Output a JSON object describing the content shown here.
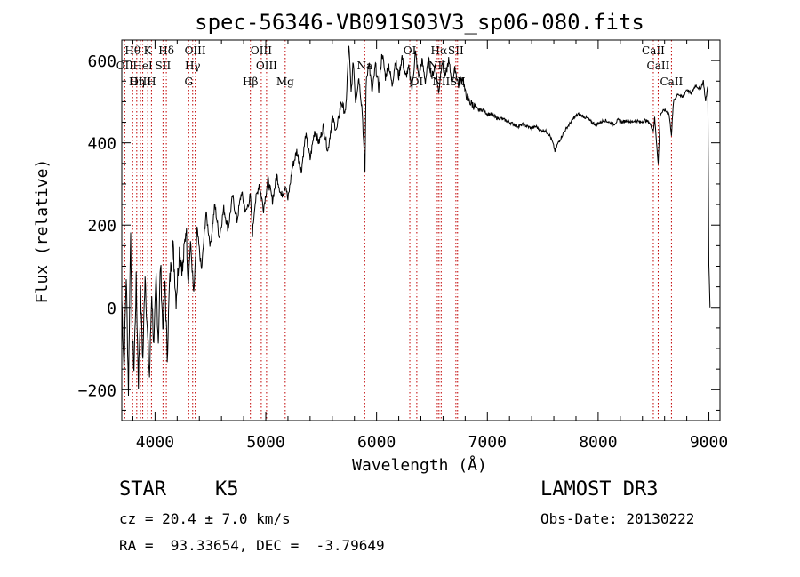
{
  "chart_data": {
    "type": "line",
    "title": "spec-56346-VB091S03V3_sp06-080.fits",
    "xlabel": "Wavelength (Å)",
    "ylabel": "Flux (relative)",
    "xlim": [
      3700,
      9100
    ],
    "ylim": [
      -275,
      650
    ],
    "x_ticks": [
      4000,
      5000,
      6000,
      7000,
      8000,
      9000
    ],
    "y_ticks": [
      -200,
      0,
      200,
      400,
      600
    ],
    "grid": false,
    "colors": {
      "spectrum": "#000000",
      "line_markers": "#c00000"
    },
    "series": [
      {
        "name": "spectrum",
        "points": [
          [
            3700,
            20
          ],
          [
            3720,
            -150
          ],
          [
            3740,
            80
          ],
          [
            3760,
            -200
          ],
          [
            3780,
            200
          ],
          [
            3790,
            -40
          ],
          [
            3810,
            -150
          ],
          [
            3830,
            60
          ],
          [
            3850,
            -180
          ],
          [
            3870,
            30
          ],
          [
            3890,
            -130
          ],
          [
            3910,
            90
          ],
          [
            3930,
            -60
          ],
          [
            3950,
            -170
          ],
          [
            3970,
            40
          ],
          [
            3990,
            -100
          ],
          [
            4010,
            70
          ],
          [
            4030,
            -80
          ],
          [
            4050,
            110
          ],
          [
            4070,
            -50
          ],
          [
            4090,
            60
          ],
          [
            4110,
            -120
          ],
          [
            4130,
            50
          ],
          [
            4160,
            160
          ],
          [
            4190,
            20
          ],
          [
            4220,
            140
          ],
          [
            4250,
            90
          ],
          [
            4280,
            200
          ],
          [
            4300,
            60
          ],
          [
            4320,
            160
          ],
          [
            4350,
            30
          ],
          [
            4380,
            190
          ],
          [
            4420,
            90
          ],
          [
            4460,
            230
          ],
          [
            4500,
            150
          ],
          [
            4540,
            250
          ],
          [
            4580,
            170
          ],
          [
            4620,
            240
          ],
          [
            4660,
            190
          ],
          [
            4700,
            270
          ],
          [
            4740,
            210
          ],
          [
            4780,
            280
          ],
          [
            4820,
            230
          ],
          [
            4860,
            270
          ],
          [
            4880,
            180
          ],
          [
            4900,
            250
          ],
          [
            4940,
            300
          ],
          [
            4980,
            240
          ],
          [
            5020,
            310
          ],
          [
            5060,
            260
          ],
          [
            5100,
            320
          ],
          [
            5140,
            270
          ],
          [
            5180,
            300
          ],
          [
            5200,
            260
          ],
          [
            5240,
            340
          ],
          [
            5280,
            380
          ],
          [
            5320,
            330
          ],
          [
            5360,
            420
          ],
          [
            5400,
            360
          ],
          [
            5440,
            430
          ],
          [
            5480,
            400
          ],
          [
            5520,
            440
          ],
          [
            5560,
            380
          ],
          [
            5600,
            460
          ],
          [
            5640,
            430
          ],
          [
            5680,
            500
          ],
          [
            5720,
            470
          ],
          [
            5750,
            640
          ],
          [
            5770,
            520
          ],
          [
            5790,
            600
          ],
          [
            5810,
            500
          ],
          [
            5840,
            560
          ],
          [
            5870,
            480
          ],
          [
            5895,
            330
          ],
          [
            5905,
            540
          ],
          [
            5930,
            600
          ],
          [
            5960,
            520
          ],
          [
            5990,
            590
          ],
          [
            6020,
            530
          ],
          [
            6050,
            620
          ],
          [
            6080,
            560
          ],
          [
            6110,
            590
          ],
          [
            6140,
            540
          ],
          [
            6170,
            600
          ],
          [
            6200,
            560
          ],
          [
            6230,
            610
          ],
          [
            6260,
            560
          ],
          [
            6290,
            580
          ],
          [
            6320,
            530
          ],
          [
            6350,
            620
          ],
          [
            6380,
            560
          ],
          [
            6410,
            600
          ],
          [
            6440,
            550
          ],
          [
            6470,
            600
          ],
          [
            6500,
            560
          ],
          [
            6530,
            590
          ],
          [
            6560,
            520
          ],
          [
            6590,
            600
          ],
          [
            6620,
            560
          ],
          [
            6650,
            600
          ],
          [
            6680,
            550
          ],
          [
            6710,
            580
          ],
          [
            6740,
            540
          ],
          [
            6780,
            560
          ],
          [
            6800,
            520
          ],
          [
            6840,
            500
          ],
          [
            6880,
            490
          ],
          [
            6920,
            480
          ],
          [
            6960,
            480
          ],
          [
            7000,
            470
          ],
          [
            7040,
            470
          ],
          [
            7080,
            460
          ],
          [
            7120,
            460
          ],
          [
            7160,
            455
          ],
          [
            7200,
            450
          ],
          [
            7240,
            445
          ],
          [
            7280,
            440
          ],
          [
            7320,
            445
          ],
          [
            7360,
            440
          ],
          [
            7400,
            435
          ],
          [
            7440,
            440
          ],
          [
            7480,
            430
          ],
          [
            7520,
            430
          ],
          [
            7560,
            420
          ],
          [
            7590,
            400
          ],
          [
            7610,
            380
          ],
          [
            7630,
            395
          ],
          [
            7660,
            410
          ],
          [
            7700,
            430
          ],
          [
            7740,
            445
          ],
          [
            7780,
            460
          ],
          [
            7820,
            470
          ],
          [
            7860,
            465
          ],
          [
            7900,
            460
          ],
          [
            7940,
            450
          ],
          [
            7980,
            445
          ],
          [
            8020,
            450
          ],
          [
            8060,
            455
          ],
          [
            8100,
            450
          ],
          [
            8140,
            445
          ],
          [
            8180,
            455
          ],
          [
            8220,
            450
          ],
          [
            8260,
            455
          ],
          [
            8300,
            450
          ],
          [
            8340,
            455
          ],
          [
            8380,
            450
          ],
          [
            8420,
            455
          ],
          [
            8460,
            450
          ],
          [
            8498,
            430
          ],
          [
            8510,
            460
          ],
          [
            8542,
            350
          ],
          [
            8560,
            470
          ],
          [
            8600,
            480
          ],
          [
            8640,
            470
          ],
          [
            8662,
            420
          ],
          [
            8680,
            500
          ],
          [
            8720,
            520
          ],
          [
            8760,
            510
          ],
          [
            8800,
            530
          ],
          [
            8840,
            520
          ],
          [
            8880,
            540
          ],
          [
            8920,
            530
          ],
          [
            8950,
            550
          ],
          [
            8970,
            500
          ],
          [
            8990,
            540
          ],
          [
            9000,
            100
          ],
          [
            9010,
            0
          ]
        ]
      }
    ],
    "line_markers": [
      {
        "label": "Hθ",
        "x": 3798,
        "row": 0
      },
      {
        "label": "OII",
        "x": 3727,
        "row": 1
      },
      {
        "label": "OIII",
        "x": 3869,
        "row": 2
      },
      {
        "label": "K",
        "x": 3934,
        "row": 0
      },
      {
        "label": "HeI",
        "x": 3889,
        "row": 1
      },
      {
        "label": "Hη",
        "x": 3835,
        "row": 2
      },
      {
        "label": "SII",
        "x": 4072,
        "row": 1
      },
      {
        "label": "H",
        "x": 3968,
        "row": 2
      },
      {
        "label": "Hδ",
        "x": 4102,
        "row": 0
      },
      {
        "label": "OIII",
        "x": 4363,
        "row": 0
      },
      {
        "label": "Hγ",
        "x": 4340,
        "row": 1
      },
      {
        "label": "G",
        "x": 4304,
        "row": 2
      },
      {
        "label": "OIII",
        "x": 4959,
        "row": 0
      },
      {
        "label": "OIII",
        "x": 5007,
        "row": 1
      },
      {
        "label": "Hβ",
        "x": 4861,
        "row": 2
      },
      {
        "label": "Mg",
        "x": 5175,
        "row": 2
      },
      {
        "label": "Na",
        "x": 5893,
        "row": 1
      },
      {
        "label": "OI",
        "x": 6300,
        "row": 0
      },
      {
        "label": "OI",
        "x": 6363,
        "row": 2
      },
      {
        "label": "Hα",
        "x": 6563,
        "row": 0
      },
      {
        "label": "NII",
        "x": 6548,
        "row": 1
      },
      {
        "label": "NII",
        "x": 6583,
        "row": 2
      },
      {
        "label": "SII",
        "x": 6716,
        "row": 0
      },
      {
        "label": "SII",
        "x": 6731,
        "row": 2
      },
      {
        "label": "CaII",
        "x": 8498,
        "row": 0
      },
      {
        "label": "CaII",
        "x": 8542,
        "row": 1
      },
      {
        "label": "CaII",
        "x": 8662,
        "row": 2
      }
    ]
  },
  "info": {
    "class": "STAR",
    "subclass": "K5",
    "survey": "LAMOST DR3",
    "cz": "cz = 20.4 ± 7.0 km/s",
    "obs_date": "Obs-Date: 20130222",
    "coords": "RA =  93.33654, DEC =  -3.79649"
  }
}
